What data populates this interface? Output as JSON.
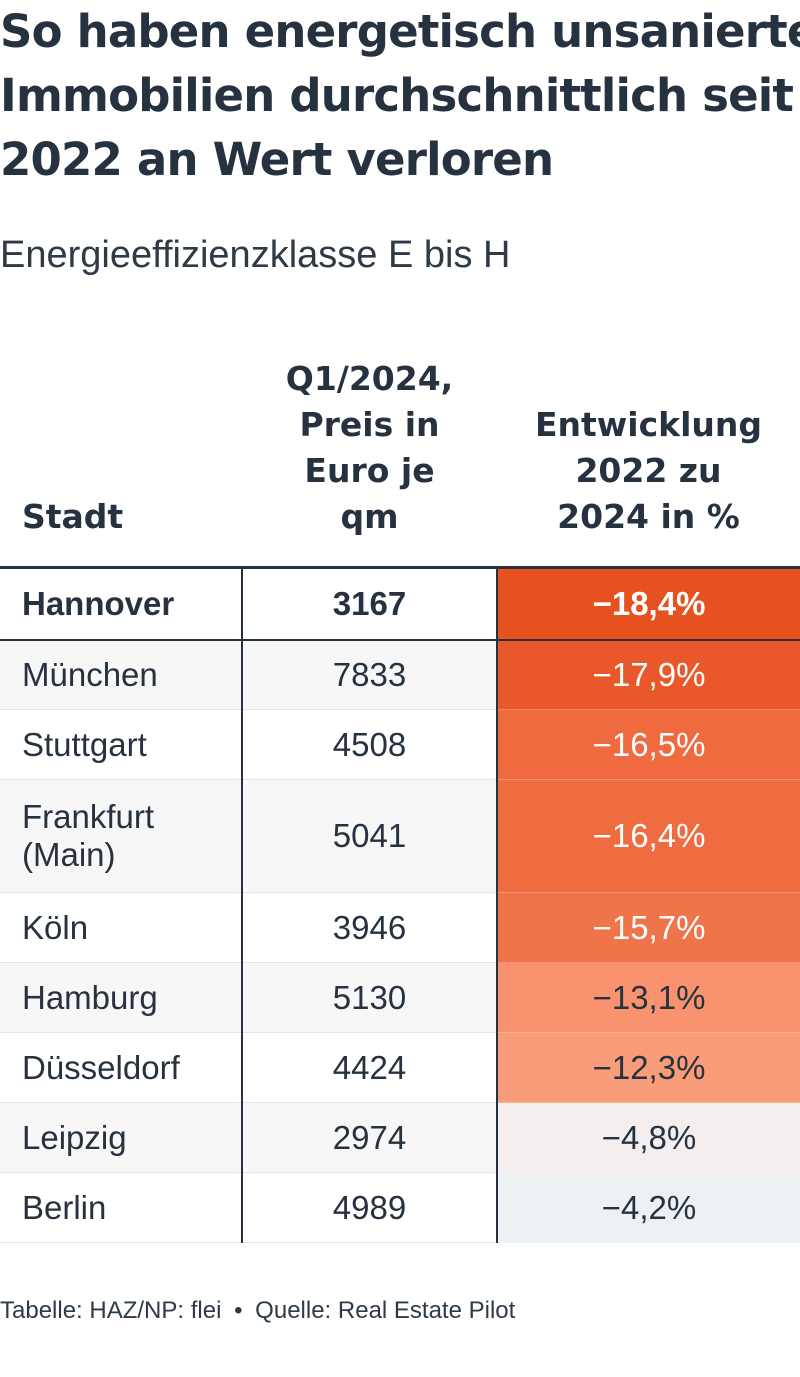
{
  "title_lines": [
    "So haben energetisch unsanierte",
    "Immobilien durchschnittlich seit",
    "2022 an Wert verloren"
  ],
  "subtitle": "Energieeffizienzklasse E bis H",
  "chart_data": {
    "type": "table",
    "columns": [
      {
        "key": "city",
        "label_lines": [
          "Stadt"
        ]
      },
      {
        "key": "price",
        "label_lines": [
          "Q1/2024,",
          "Preis in",
          "Euro je",
          "qm"
        ]
      },
      {
        "key": "change",
        "label_lines": [
          "Entwicklung",
          "2022 zu",
          "2024 in %"
        ]
      }
    ],
    "rows": [
      {
        "city_lines": [
          "Hannover"
        ],
        "price": "3167",
        "change": "−18,4%",
        "change_value": -18.4,
        "highlight": true,
        "color": "#e6511f",
        "text_color": "#ffffff"
      },
      {
        "city_lines": [
          "München"
        ],
        "price": "7833",
        "change": "−17,9%",
        "change_value": -17.9,
        "color": "#e9582a",
        "text_color": "#ffffff"
      },
      {
        "city_lines": [
          "Stuttgart"
        ],
        "price": "4508",
        "change": "−16,5%",
        "change_value": -16.5,
        "color": "#ef6b3f",
        "text_color": "#ffffff"
      },
      {
        "city_lines": [
          "Frankfurt",
          "(Main)"
        ],
        "price": "5041",
        "change": "−16,4%",
        "change_value": -16.4,
        "color": "#ef6c40",
        "text_color": "#ffffff"
      },
      {
        "city_lines": [
          "Köln"
        ],
        "price": "3946",
        "change": "−15,7%",
        "change_value": -15.7,
        "color": "#f0744a",
        "text_color": "#ffffff"
      },
      {
        "city_lines": [
          "Hamburg"
        ],
        "price": "5130",
        "change": "−13,1%",
        "change_value": -13.1,
        "color": "#f8926f",
        "text_color": "#263240"
      },
      {
        "city_lines": [
          "Düsseldorf"
        ],
        "price": "4424",
        "change": "−12,3%",
        "change_value": -12.3,
        "color": "#f99c79",
        "text_color": "#263240"
      },
      {
        "city_lines": [
          "Leipzig"
        ],
        "price": "2974",
        "change": "−4,8%",
        "change_value": -4.8,
        "color": "#f4eeee",
        "text_color": "#263240"
      },
      {
        "city_lines": [
          "Berlin"
        ],
        "price": "4989",
        "change": "−4,2%",
        "change_value": -4.2,
        "color": "#eef1f4",
        "text_color": "#263240"
      }
    ]
  },
  "footer": {
    "credit": "Tabelle: HAZ/NP: flei",
    "separator": "•",
    "source": "Quelle: Real Estate Pilot"
  }
}
